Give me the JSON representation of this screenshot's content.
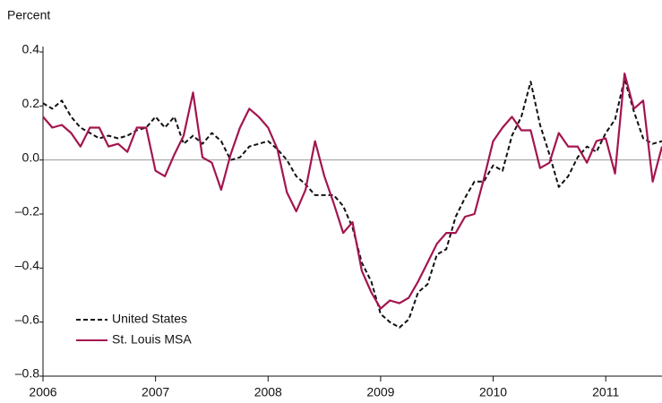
{
  "chart_data": {
    "type": "line",
    "y_axis_label": "Percent",
    "x": [
      2006,
      2006.083,
      2006.167,
      2006.25,
      2006.333,
      2006.417,
      2006.5,
      2006.583,
      2006.667,
      2006.75,
      2006.833,
      2006.917,
      2007,
      2007.083,
      2007.167,
      2007.25,
      2007.333,
      2007.417,
      2007.5,
      2007.583,
      2007.667,
      2007.75,
      2007.833,
      2007.917,
      2008,
      2008.083,
      2008.167,
      2008.25,
      2008.333,
      2008.417,
      2008.5,
      2008.583,
      2008.667,
      2008.75,
      2008.833,
      2008.917,
      2009,
      2009.083,
      2009.167,
      2009.25,
      2009.333,
      2009.417,
      2009.5,
      2009.583,
      2009.667,
      2009.75,
      2009.833,
      2009.917,
      2010,
      2010.083,
      2010.167,
      2010.25,
      2010.333,
      2010.417,
      2010.5,
      2010.583,
      2010.667,
      2010.75,
      2010.833,
      2010.917,
      2011,
      2011.083,
      2011.167,
      2011.25,
      2011.333,
      2011.417,
      2011.5
    ],
    "series": [
      {
        "name": "United States",
        "color": "#111111",
        "dash": true,
        "values": [
          0.21,
          0.19,
          0.22,
          0.16,
          0.12,
          0.1,
          0.08,
          0.09,
          0.08,
          0.09,
          0.11,
          0.12,
          0.16,
          0.12,
          0.16,
          0.06,
          0.09,
          0.06,
          0.1,
          0.07,
          0.0,
          0.01,
          0.05,
          0.06,
          0.07,
          0.04,
          0.0,
          -0.06,
          -0.09,
          -0.13,
          -0.13,
          -0.13,
          -0.17,
          -0.25,
          -0.38,
          -0.45,
          -0.57,
          -0.6,
          -0.62,
          -0.59,
          -0.49,
          -0.46,
          -0.35,
          -0.33,
          -0.21,
          -0.14,
          -0.08,
          -0.08,
          -0.02,
          -0.04,
          0.09,
          0.16,
          0.29,
          0.13,
          0.02,
          -0.1,
          -0.06,
          0.01,
          0.05,
          0.03,
          0.1,
          0.15,
          0.3,
          0.18,
          0.08,
          0.06,
          0.07
        ]
      },
      {
        "name": "St. Louis MSA",
        "color": "#a3154f",
        "dash": false,
        "values": [
          0.16,
          0.12,
          0.13,
          0.1,
          0.05,
          0.12,
          0.12,
          0.05,
          0.06,
          0.03,
          0.12,
          0.12,
          -0.04,
          -0.06,
          0.02,
          0.09,
          0.25,
          0.01,
          -0.01,
          -0.11,
          0.02,
          0.12,
          0.19,
          0.16,
          0.12,
          0.04,
          -0.12,
          -0.19,
          -0.11,
          0.07,
          -0.06,
          -0.16,
          -0.27,
          -0.23,
          -0.41,
          -0.49,
          -0.55,
          -0.52,
          -0.53,
          -0.51,
          -0.45,
          -0.38,
          -0.31,
          -0.27,
          -0.27,
          -0.21,
          -0.2,
          -0.07,
          0.07,
          0.12,
          0.16,
          0.11,
          0.11,
          -0.03,
          -0.01,
          0.1,
          0.05,
          0.05,
          -0.01,
          0.07,
          0.08,
          -0.05,
          0.32,
          0.19,
          0.22,
          -0.08,
          0.05
        ]
      }
    ],
    "xlim": [
      2006,
      2011.5
    ],
    "xticks": [
      2006,
      2007,
      2008,
      2009,
      2010,
      2011
    ],
    "ylim": [
      -0.8,
      0.4
    ],
    "yticks": [
      {
        "value": 0.4,
        "label": "0.4"
      },
      {
        "value": 0.2,
        "label": "0.2"
      },
      {
        "value": 0,
        "label": "0.0"
      },
      {
        "value": -0.2,
        "label": "–0.2"
      },
      {
        "value": -0.4,
        "label": "–0.4"
      },
      {
        "value": -0.6,
        "label": "–0.6"
      },
      {
        "value": -0.8,
        "label": "–0.8"
      }
    ],
    "zero_line": true,
    "legend": "lower left"
  }
}
